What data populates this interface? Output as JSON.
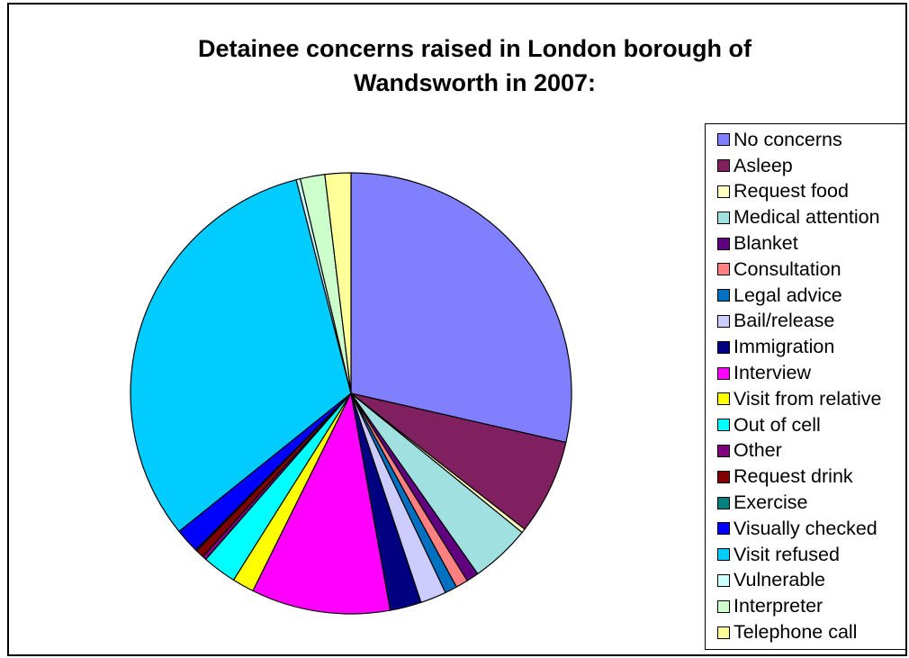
{
  "chart_data": {
    "type": "pie",
    "title_lines": [
      "Detainee concerns raised in London borough of",
      "Wandsworth in 2007:"
    ],
    "start_angle_deg": 0,
    "direction": "clockwise",
    "slices": [
      {
        "label": "No concerns",
        "value": 28.6,
        "color": "#8080ff"
      },
      {
        "label": "Asleep",
        "value": 7.0,
        "color": "#802060"
      },
      {
        "label": "Request food",
        "value": 0.3,
        "color": "#ffffc0"
      },
      {
        "label": "Medical attention",
        "value": 4.4,
        "color": "#a0e0e0"
      },
      {
        "label": "Blanket",
        "value": 0.9,
        "color": "#600080"
      },
      {
        "label": "Consultation",
        "value": 0.9,
        "color": "#ff8080"
      },
      {
        "label": "Legal advice",
        "value": 0.9,
        "color": "#0070c0"
      },
      {
        "label": "Bail/release",
        "value": 1.9,
        "color": "#ccccff"
      },
      {
        "label": "Immigration",
        "value": 2.3,
        "color": "#000080"
      },
      {
        "label": "Interview",
        "value": 10.2,
        "color": "#ff00ff"
      },
      {
        "label": "Visit from relative",
        "value": 1.6,
        "color": "#ffff00"
      },
      {
        "label": "Out of cell",
        "value": 2.5,
        "color": "#00ffff"
      },
      {
        "label": "Other",
        "value": 0.3,
        "color": "#800080"
      },
      {
        "label": "Request drink",
        "value": 0.6,
        "color": "#800000"
      },
      {
        "label": "Exercise",
        "value": 0.1,
        "color": "#008080"
      },
      {
        "label": "Visually checked",
        "value": 1.8,
        "color": "#0000ff"
      },
      {
        "label": "Visit refused",
        "value": 31.8,
        "color": "#00ccff"
      },
      {
        "label": "Vulnerable",
        "value": 0.3,
        "color": "#ccffff"
      },
      {
        "label": "Interpreter",
        "value": 1.8,
        "color": "#ccffcc"
      },
      {
        "label": "Telephone call",
        "value": 1.9,
        "color": "#ffff99"
      }
    ]
  }
}
